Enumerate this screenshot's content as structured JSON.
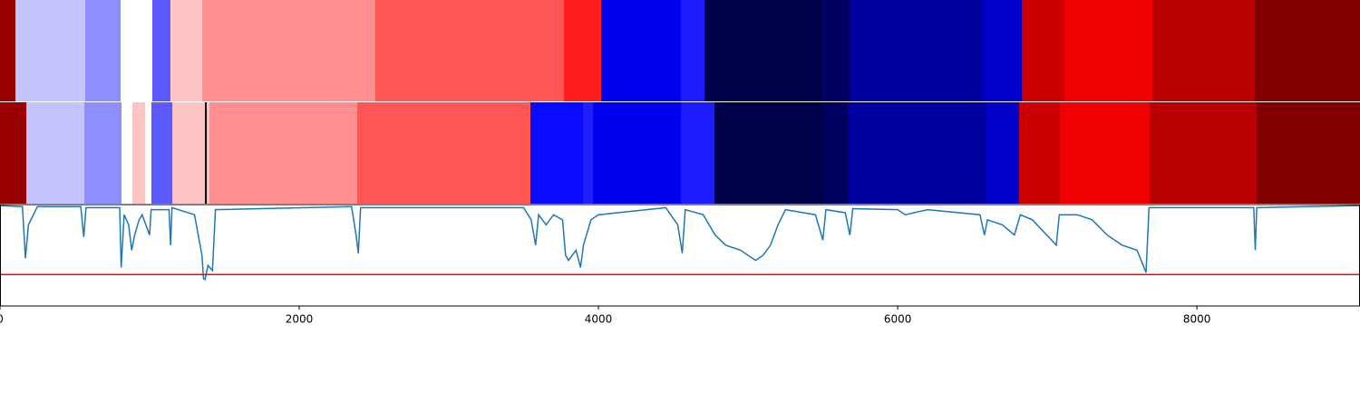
{
  "chart_data": {
    "type": "line",
    "xlim": [
      0,
      9090
    ],
    "xticks": [
      0,
      2000,
      4000,
      6000,
      8000
    ],
    "ylim": [
      0,
      1
    ],
    "strips": [
      {
        "bounds": [
          0,
          103,
          570,
          806,
          1018,
          1139,
          1352,
          2509,
          3770,
          4018,
          4552,
          4709,
          5491,
          5679,
          6570,
          6830,
          7115,
          7703,
          8388,
          9090
        ],
        "colors": [
          "#990000",
          "#c4c4ff",
          "#8e8eff",
          "#ffffff",
          "#5a5aff",
          "#ffc4c4",
          "#ff8e8e",
          "#ff5555",
          "#ff1c1c",
          "#0000f0",
          "#1c1cff",
          "#00004a",
          "#000060",
          "#00009e",
          "#0000c8",
          "#cc0000",
          "#f00000",
          "#b80000",
          "#800000"
        ]
      },
      {
        "bounds": [
          0,
          176,
          564,
          812,
          885,
          970,
          1012,
          1152,
          1370,
          1382,
          1400,
          2388,
          3545,
          3897,
          3964,
          4552,
          4776,
          5503,
          5667,
          6588,
          6812,
          7085,
          7685,
          8400,
          9090
        ],
        "colors": [
          "#990000",
          "#c4c4ff",
          "#8e8eff",
          "#ffffff",
          "#ffc4c4",
          "#ffffff",
          "#5a5aff",
          "#ffc4c4",
          "#000000",
          "#ffc4c4",
          "#ff8e8e",
          "#ff5555",
          "#0a0aff",
          "#2020ff",
          "#0000f0",
          "#1c1cff",
          "#00004a",
          "#000060",
          "#00009e",
          "#0000c8",
          "#cc0000",
          "#f00000",
          "#b80000",
          "#800000"
        ]
      }
    ],
    "x": [
      0,
      150,
      170,
      190,
      250,
      540,
      560,
      575,
      800,
      810,
      830,
      860,
      880,
      900,
      930,
      950,
      1000,
      1010,
      1130,
      1140,
      1150,
      1300,
      1350,
      1360,
      1370,
      1390,
      1420,
      1440,
      2350,
      2380,
      2395,
      2410,
      3500,
      3550,
      3580,
      3600,
      3650,
      3700,
      3760,
      3780,
      3800,
      3850,
      3880,
      3900,
      3950,
      4000,
      4450,
      4530,
      4560,
      4580,
      4700,
      4780,
      4850,
      4950,
      5000,
      5050,
      5100,
      5150,
      5200,
      5250,
      5450,
      5500,
      5520,
      5650,
      5680,
      5700,
      6000,
      6050,
      6200,
      6550,
      6580,
      6600,
      6700,
      6780,
      6820,
      6900,
      7060,
      7080,
      7200,
      7300,
      7400,
      7500,
      7600,
      7660,
      7680,
      8380,
      8390,
      8400,
      9090
    ],
    "series": [
      {
        "color": "#1f77b4",
        "values": [
          0.99,
          0.98,
          0.47,
          0.8,
          0.98,
          0.98,
          0.68,
          0.97,
          0.97,
          0.38,
          0.9,
          0.8,
          0.55,
          0.7,
          0.85,
          0.9,
          0.7,
          0.95,
          0.95,
          0.6,
          0.97,
          0.9,
          0.5,
          0.27,
          0.26,
          0.4,
          0.35,
          0.95,
          0.98,
          0.7,
          0.52,
          0.97,
          0.97,
          0.85,
          0.6,
          0.9,
          0.8,
          0.9,
          0.85,
          0.5,
          0.45,
          0.55,
          0.38,
          0.6,
          0.85,
          0.9,
          0.97,
          0.8,
          0.52,
          0.95,
          0.9,
          0.7,
          0.6,
          0.55,
          0.5,
          0.45,
          0.5,
          0.6,
          0.8,
          0.95,
          0.9,
          0.65,
          0.95,
          0.92,
          0.7,
          0.96,
          0.95,
          0.9,
          0.95,
          0.9,
          0.7,
          0.85,
          0.8,
          0.7,
          0.9,
          0.85,
          0.6,
          0.9,
          0.9,
          0.85,
          0.7,
          0.6,
          0.55,
          0.33,
          0.97,
          0.97,
          0.55,
          0.97,
          0.99
        ]
      }
    ],
    "threshold": 0.31,
    "threshold_color": "#ff0000"
  }
}
